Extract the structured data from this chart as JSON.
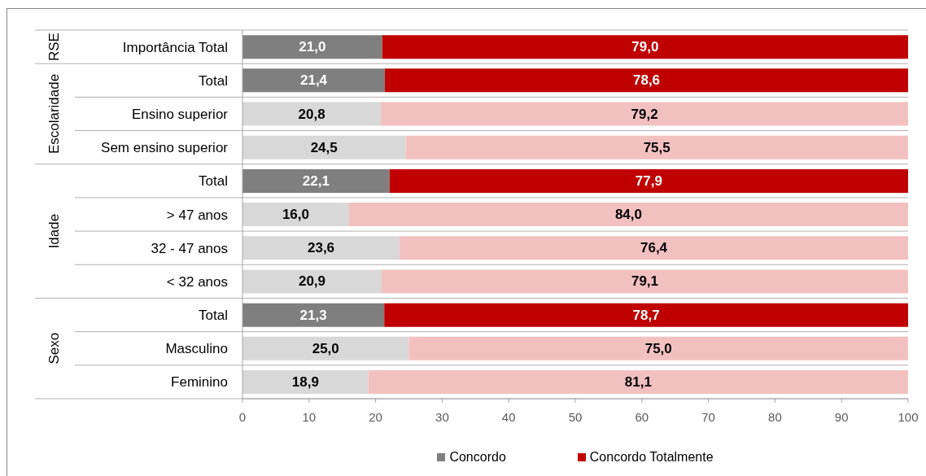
{
  "chart_data": {
    "type": "bar",
    "orientation": "horizontal",
    "stacked": true,
    "categories": [
      "Importância Total",
      "Total",
      "Ensino superior",
      "Sem ensino superior",
      "Total",
      "> 47 anos",
      "32 - 47 anos",
      "< 32 anos",
      "Total",
      "Masculino",
      "Feminino"
    ],
    "series": [
      {
        "name": "Concordo",
        "color": "#7f7f7f",
        "colors": [
          "#7f7f7f",
          "#7f7f7f",
          "#d8d8d8",
          "#d8d8d8",
          "#7f7f7f",
          "#d8d8d8",
          "#d8d8d8",
          "#d8d8d8",
          "#7f7f7f",
          "#d8d8d8",
          "#d8d8d8"
        ],
        "values": [
          21.0,
          21.4,
          20.8,
          24.5,
          22.1,
          16.0,
          23.6,
          20.9,
          21.3,
          25.0,
          18.9
        ],
        "value_labels": [
          "21,0",
          "21,4",
          "20,8",
          "24,5",
          "22,1",
          "16,0",
          "23,6",
          "20,9",
          "21,3",
          "25,0",
          "18,9"
        ]
      },
      {
        "name": "Concordo Totalmente",
        "color": "#c00000",
        "colors": [
          "#c00000",
          "#c00000",
          "#f3c0c0",
          "#f3c0c0",
          "#c00000",
          "#f3c0c0",
          "#f3c0c0",
          "#f3c0c0",
          "#c00000",
          "#f3c0c0",
          "#f3c0c0"
        ],
        "values": [
          79.0,
          78.6,
          79.2,
          75.5,
          77.9,
          84.0,
          76.4,
          79.1,
          78.7,
          75.0,
          81.1
        ],
        "value_labels": [
          "79,0",
          "78,6",
          "79,2",
          "75,5",
          "77,9",
          "84,0",
          "76,4",
          "79,1",
          "78,7",
          "75,0",
          "81,1"
        ]
      }
    ],
    "xlim": [
      0,
      100
    ],
    "xticks": [
      0,
      10,
      20,
      30,
      40,
      50,
      60,
      70,
      80,
      90,
      100
    ],
    "grid": "y",
    "legend": "bottom",
    "annotations": [
      "RSE",
      "Escolaridade",
      "Idade",
      "Sexo"
    ]
  }
}
